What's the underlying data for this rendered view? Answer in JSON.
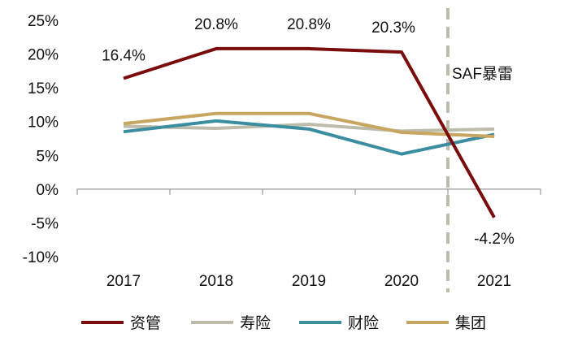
{
  "chart_data": {
    "type": "line",
    "categories": [
      "2017",
      "2018",
      "2019",
      "2020",
      "2021"
    ],
    "ylim": [
      -10,
      25
    ],
    "yticks": [
      25,
      20,
      15,
      10,
      5,
      0,
      -5,
      -10
    ],
    "ytick_labels": [
      "25%",
      "20%",
      "15%",
      "10%",
      "5%",
      "0%",
      "-5%",
      "-10%"
    ],
    "grid": false,
    "legend_position": "bottom",
    "series": [
      {
        "name": "资管",
        "color": "#7a0c0c",
        "values": [
          16.4,
          20.8,
          20.8,
          20.3,
          -4.2
        ],
        "data_labels": [
          "16.4%",
          "20.8%",
          "20.8%",
          "20.3%",
          "-4.2%"
        ]
      },
      {
        "name": "寿险",
        "color": "#bdbcab",
        "values": [
          9.3,
          9.0,
          9.6,
          8.6,
          8.9
        ]
      },
      {
        "name": "财险",
        "color": "#3a8ea0",
        "values": [
          8.5,
          10.1,
          8.9,
          5.2,
          8.1
        ]
      },
      {
        "name": "集团",
        "color": "#c8a560",
        "values": [
          9.7,
          11.2,
          11.2,
          8.4,
          7.8
        ]
      }
    ],
    "annotation": {
      "text": "SAF暴雷",
      "between": [
        "2020",
        "2021"
      ],
      "line_style": "dashed",
      "color": "#bdbcab"
    }
  }
}
